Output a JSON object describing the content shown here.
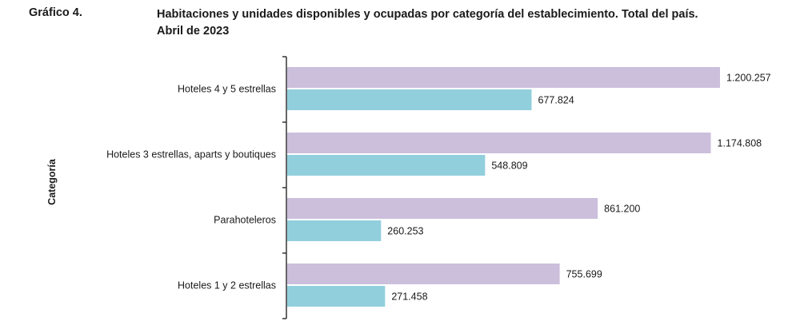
{
  "header": {
    "figure_label": "Gráfico 4.",
    "title_line1": "Habitaciones y unidades disponibles y ocupadas por categoría del establecimiento. Total del país.",
    "title_line2": "Abril de 2023"
  },
  "colors": {
    "series_disponibles": "#cbbfdc",
    "series_ocupadas": "#92cfdd",
    "axis": "#333333"
  },
  "chart_data": {
    "type": "bar",
    "orientation": "horizontal",
    "title": "Habitaciones y unidades disponibles y ocupadas por categoría del establecimiento. Total del país. Abril de 2023",
    "ylabel": "Categoría",
    "xlabel": "",
    "categories": [
      "Hoteles 4 y 5 estrellas",
      "Hoteles 3 estrellas, aparts y  boutiques",
      "Parahoteleros",
      "Hoteles 1 y 2 estrellas"
    ],
    "series": [
      {
        "values": [
          1200257,
          1174808,
          861200,
          755699
        ],
        "labels": [
          "1.200.257",
          "1.174.808",
          "861.200",
          "755.699"
        ],
        "color": "#cbbfdc"
      },
      {
        "values": [
          677824,
          548809,
          260253,
          271458
        ],
        "labels": [
          "677.824",
          "548.809",
          "260.253",
          "271.458"
        ],
        "color": "#92cfdd"
      }
    ],
    "xlim": [
      0,
      1200257
    ],
    "grid": false,
    "legend": "none"
  }
}
